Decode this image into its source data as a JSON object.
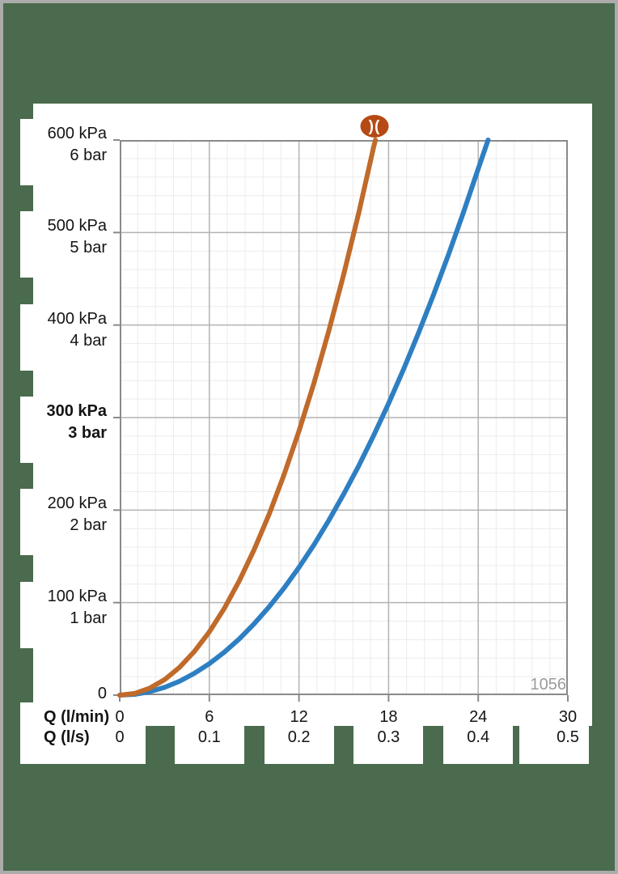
{
  "colors": {
    "background": "#4a6b4d",
    "frame": "#acacac",
    "panel": "#ffffff",
    "text": "#141414",
    "watermark_text": "#9b9b9b",
    "logo_fill": "#b54a15",
    "logo_glyph_color": "#ffffff"
  },
  "logo": {
    "glyph": ")("
  },
  "watermark": "1056",
  "chart_data": {
    "type": "line",
    "x_axis": {
      "row1_label": "Q (l/min)",
      "row2_label": "Q (l/s)",
      "range_lmin": [
        0,
        30
      ],
      "minor_divisions_per_major": 5,
      "ticks": [
        {
          "value": 0,
          "lmin": "0",
          "ls": "0"
        },
        {
          "value": 6,
          "lmin": "6",
          "ls": "0.1"
        },
        {
          "value": 12,
          "lmin": "12",
          "ls": "0.2"
        },
        {
          "value": 18,
          "lmin": "18",
          "ls": "0.3"
        },
        {
          "value": 24,
          "lmin": "24",
          "ls": "0.4"
        },
        {
          "value": 30,
          "lmin": "30",
          "ls": "0.5"
        }
      ]
    },
    "y_axis": {
      "range_kpa": [
        0,
        600
      ],
      "major_step_kpa": 100,
      "minor_step_kpa": 20,
      "ticks": [
        {
          "value": 600,
          "kpa": "600 kPa",
          "bar": "6 bar",
          "bold": false
        },
        {
          "value": 500,
          "kpa": "500 kPa",
          "bar": "5 bar",
          "bold": false
        },
        {
          "value": 400,
          "kpa": "400 kPa",
          "bar": "4 bar",
          "bold": false
        },
        {
          "value": 300,
          "kpa": "300 kPa",
          "bar": "3 bar",
          "bold": true
        },
        {
          "value": 200,
          "kpa": "200 kPa",
          "bar": "2 bar",
          "bold": false
        },
        {
          "value": 100,
          "kpa": "100 kPa",
          "bar": "1 bar",
          "bold": false
        },
        {
          "value": 0,
          "kpa": "0",
          "bar": null,
          "bold": false
        }
      ]
    },
    "grid": {
      "minor_color": "#ececec",
      "major_color": "#b3b3b3",
      "border_color": "#8a8a8a"
    },
    "series": [
      {
        "name": "curve-2-blue",
        "color": "#2e7fc2",
        "points_lmin_kpa": [
          [
            0,
            0
          ],
          [
            1,
            0.9
          ],
          [
            2,
            3.7
          ],
          [
            3,
            8.4
          ],
          [
            4,
            15
          ],
          [
            5,
            23.6
          ],
          [
            6,
            34
          ],
          [
            7,
            46.4
          ],
          [
            8,
            60.7
          ],
          [
            9,
            77.1
          ],
          [
            10,
            95.4
          ],
          [
            11,
            115.7
          ],
          [
            12,
            138.1
          ],
          [
            13,
            162.4
          ],
          [
            14,
            188.9
          ],
          [
            15,
            217.4
          ],
          [
            16,
            247.9
          ],
          [
            17,
            280.6
          ],
          [
            18,
            315.3
          ],
          [
            19,
            352.2
          ],
          [
            20,
            391.2
          ],
          [
            21,
            432.4
          ],
          [
            22,
            475.7
          ],
          [
            23,
            521.2
          ],
          [
            24,
            568.9
          ],
          [
            24.66,
            600
          ]
        ]
      },
      {
        "name": "curve-1-orange",
        "color": "#c06a2b",
        "points_lmin_kpa": [
          [
            0,
            0
          ],
          [
            1,
            1.8
          ],
          [
            2,
            7.4
          ],
          [
            3,
            16.7
          ],
          [
            4,
            30
          ],
          [
            5,
            47.2
          ],
          [
            6,
            68.4
          ],
          [
            7,
            93.8
          ],
          [
            8,
            123.4
          ],
          [
            9,
            157.3
          ],
          [
            10,
            195.5
          ],
          [
            11,
            238.2
          ],
          [
            12,
            285.4
          ],
          [
            13,
            337.2
          ],
          [
            14,
            393.8
          ],
          [
            15,
            455.1
          ],
          [
            16,
            521.2
          ],
          [
            17,
            592.3
          ],
          [
            17.12,
            600
          ]
        ]
      }
    ]
  }
}
